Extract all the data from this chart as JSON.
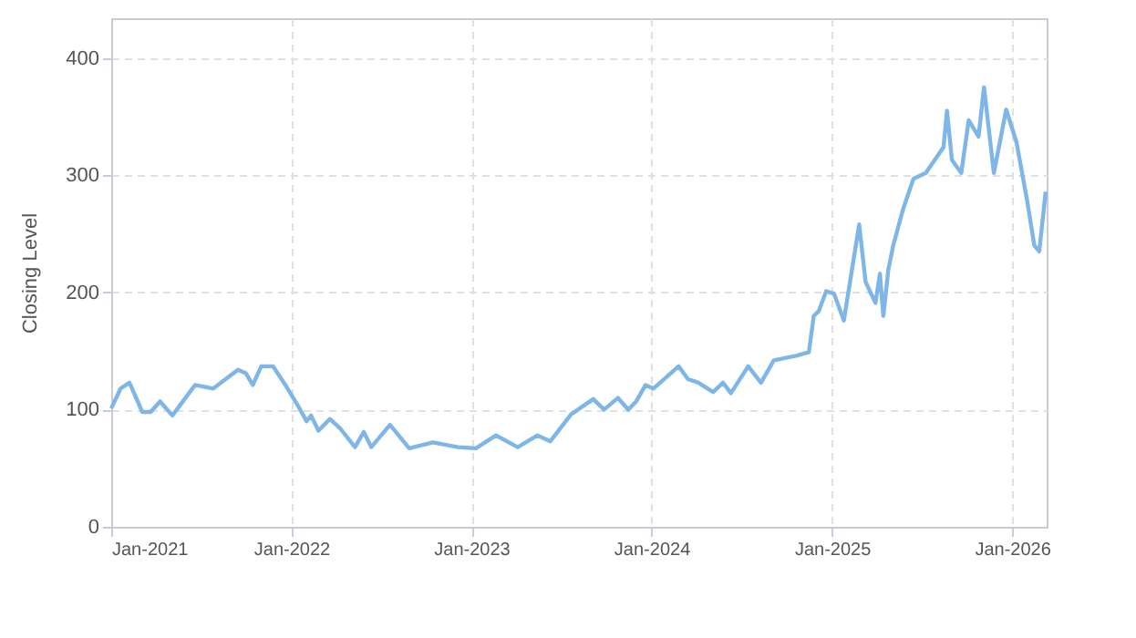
{
  "chart_data": {
    "type": "line",
    "ylabel": "Closing Level",
    "x": [
      "2021-01-01",
      "2021-01-20",
      "2021-02-07",
      "2021-03-05",
      "2021-03-22",
      "2021-04-10",
      "2021-05-05",
      "2021-06-20",
      "2021-07-27",
      "2021-09-15",
      "2021-10-01",
      "2021-10-15",
      "2021-11-01",
      "2021-11-25",
      "2021-12-20",
      "2022-01-15",
      "2022-02-01",
      "2022-02-10",
      "2022-02-25",
      "2022-03-20",
      "2022-04-10",
      "2022-05-10",
      "2022-05-28",
      "2022-06-12",
      "2022-07-20",
      "2022-08-28",
      "2022-10-15",
      "2022-12-05",
      "2023-01-10",
      "2023-02-20",
      "2023-04-05",
      "2023-05-15",
      "2023-06-10",
      "2023-07-22",
      "2023-09-05",
      "2023-09-27",
      "2023-10-25",
      "2023-11-15",
      "2023-12-01",
      "2023-12-20",
      "2024-01-05",
      "2024-02-25",
      "2024-03-15",
      "2024-04-05",
      "2024-05-05",
      "2024-05-25",
      "2024-06-10",
      "2024-07-15",
      "2024-08-10",
      "2024-09-05",
      "2024-10-20",
      "2024-11-15",
      "2024-11-25",
      "2024-12-05",
      "2024-12-20",
      "2025-01-05",
      "2025-01-25",
      "2025-02-25",
      "2025-03-10",
      "2025-03-30",
      "2025-04-08",
      "2025-04-15",
      "2025-04-25",
      "2025-05-05",
      "2025-05-25",
      "2025-06-15",
      "2025-07-10",
      "2025-08-15",
      "2025-08-22",
      "2025-09-01",
      "2025-09-20",
      "2025-10-05",
      "2025-10-25",
      "2025-11-05",
      "2025-11-25",
      "2025-12-20",
      "2026-01-10",
      "2026-02-01",
      "2026-02-15",
      "2026-02-25",
      "2026-03-10"
    ],
    "series": [
      {
        "color": "#7eb6e8",
        "values": [
          101,
          118,
          123,
          98,
          98,
          107,
          95,
          121,
          118,
          134,
          131,
          121,
          137,
          137,
          121,
          103,
          90,
          95,
          82,
          92,
          84,
          68,
          81,
          68,
          87,
          67,
          72,
          68,
          67,
          78,
          68,
          78,
          73,
          96,
          109,
          100,
          110,
          100,
          107,
          121,
          118,
          137,
          126,
          123,
          115,
          123,
          114,
          137,
          123,
          142,
          146,
          149,
          180,
          184,
          201,
          199,
          176,
          258,
          209,
          191,
          216,
          180,
          219,
          240,
          271,
          297,
          302,
          324,
          355,
          313,
          302,
          347,
          333,
          375,
          302,
          356,
          328,
          277,
          240,
          235,
          286
        ]
      }
    ],
    "xlim": [
      "2021-01-01",
      "2026-03-12"
    ],
    "xticks": [
      {
        "value": "2021-01-01",
        "label": "Jan-2021"
      },
      {
        "value": "2022-01-01",
        "label": "Jan-2022"
      },
      {
        "value": "2023-01-01",
        "label": "Jan-2023"
      },
      {
        "value": "2024-01-01",
        "label": "Jan-2024"
      },
      {
        "value": "2025-01-01",
        "label": "Jan-2025"
      },
      {
        "value": "2026-01-01",
        "label": "Jan-2026"
      }
    ],
    "ylim": [
      0,
      434
    ],
    "yticks": [
      0,
      100,
      200,
      300,
      400
    ],
    "grid": true,
    "line_style": "solid",
    "marker": "none"
  }
}
